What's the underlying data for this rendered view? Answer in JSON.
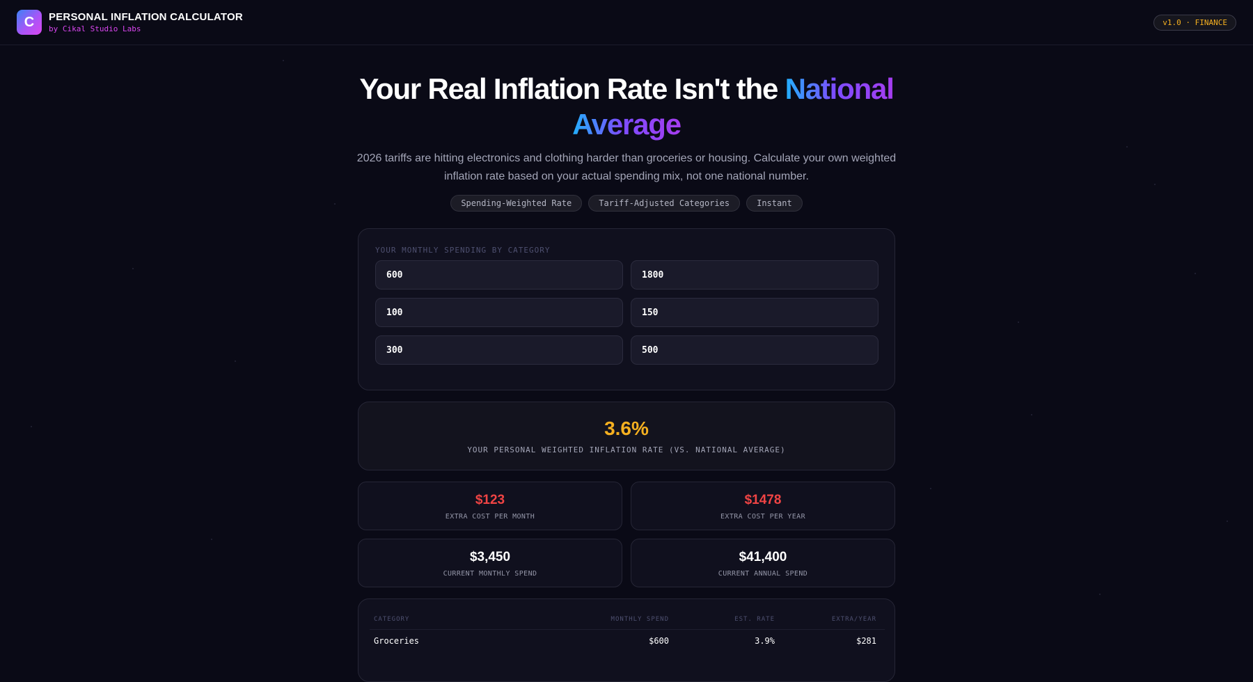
{
  "header": {
    "logo_letter": "C",
    "title": "PERSONAL INFLATION CALCULATOR",
    "subtitle": "by Cikal Studio Labs",
    "version": "v1.0 · FINANCE"
  },
  "hero": {
    "title_main": "Your Real Inflation Rate Isn't the ",
    "title_highlight_1": "National",
    "title_highlight_2": "Average",
    "description": "2026 tariffs are hitting electronics and clothing harder than groceries or housing. Calculate your own weighted inflation rate based on your actual spending mix, not one national number.",
    "pills": [
      "Spending-Weighted Rate",
      "Tariff-Adjusted Categories",
      "Instant"
    ]
  },
  "inputs": {
    "section_label": "YOUR MONTHLY SPENDING BY CATEGORY",
    "fields": [
      "600",
      "1800",
      "100",
      "150",
      "300",
      "500"
    ]
  },
  "result": {
    "rate": "3.6%",
    "rate_label": "YOUR PERSONAL WEIGHTED INFLATION RATE (VS. NATIONAL AVERAGE)"
  },
  "stats": [
    {
      "value": "$123",
      "label": "EXTRA COST PER MONTH"
    },
    {
      "value": "$1478",
      "label": "EXTRA COST PER YEAR"
    },
    {
      "value": "$3,450",
      "label": "CURRENT MONTHLY SPEND"
    },
    {
      "value": "$41,400",
      "label": "CURRENT ANNUAL SPEND"
    }
  ],
  "table": {
    "headers": [
      "CATEGORY",
      "MONTHLY SPEND",
      "EST. RATE",
      "EXTRA/YEAR"
    ],
    "rows": [
      {
        "category": "Groceries",
        "monthly": "$600",
        "rate": "3.9%",
        "extra": "$281"
      }
    ]
  },
  "colors": {
    "background": "#0a0a16",
    "accent_yellow": "#f5b020",
    "accent_red": "#f04444",
    "accent_magenta": "#d946ef",
    "gradient_blue": "#22b0ff",
    "gradient_purple": "#a63df0"
  }
}
